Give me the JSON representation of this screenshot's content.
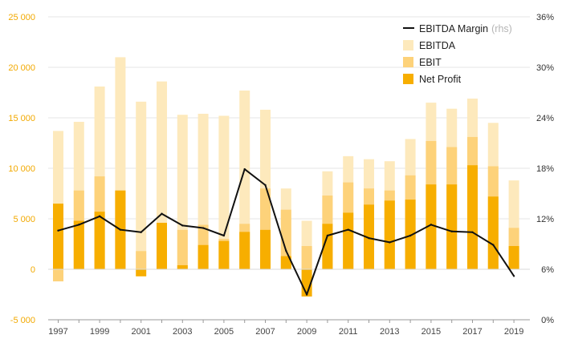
{
  "chart_data": {
    "type": "bar",
    "categories": [
      "1997",
      "1998",
      "1999",
      "2000",
      "2001",
      "2002",
      "2003",
      "2004",
      "2005",
      "2006",
      "2007",
      "2008",
      "2009",
      "2010",
      "2011",
      "2012",
      "2013",
      "2014",
      "2015",
      "2016",
      "2017",
      "2018",
      "2019"
    ],
    "x_tick_labels": [
      "1997",
      "1999",
      "2001",
      "2003",
      "2005",
      "2007",
      "2009",
      "2011",
      "2013",
      "2015",
      "2017",
      "2019"
    ],
    "series": [
      {
        "name": "EBITDA",
        "axis": "left",
        "values": [
          13700,
          14600,
          18100,
          21000,
          16600,
          18600,
          15300,
          15400,
          15200,
          17700,
          15800,
          8000,
          4800,
          9700,
          11200,
          10900,
          10700,
          12900,
          16500,
          15900,
          16900,
          14500,
          8800
        ]
      },
      {
        "name": "EBIT",
        "axis": "left",
        "values": [
          -1200,
          7800,
          9200,
          7800,
          1800,
          4600,
          3900,
          4400,
          3000,
          4500,
          8000,
          5900,
          2300,
          7300,
          8600,
          8000,
          7800,
          9300,
          12700,
          12100,
          13100,
          10200,
          4100
        ]
      },
      {
        "name": "Net Profit",
        "axis": "left",
        "values": [
          6500,
          4800,
          5700,
          7800,
          -700,
          4600,
          400,
          2400,
          2800,
          3700,
          3900,
          1300,
          -2700,
          4500,
          5600,
          6400,
          6800,
          6900,
          8400,
          8400,
          10300,
          7200,
          2300
        ]
      },
      {
        "name": "EBITDA Margin",
        "name_note": "(rhs)",
        "axis": "right",
        "type": "line",
        "values": [
          10.6,
          11.3,
          12.3,
          10.7,
          10.4,
          12.6,
          11.2,
          10.9,
          10.0,
          17.9,
          16.0,
          8.2,
          3.0,
          10.0,
          10.7,
          9.7,
          9.2,
          10.0,
          11.3,
          10.5,
          10.4,
          8.9,
          5.2
        ]
      }
    ],
    "left_axis": {
      "ylim": [
        -5000,
        25000
      ],
      "ticks": [
        -5000,
        0,
        5000,
        10000,
        15000,
        20000,
        25000
      ],
      "tick_labels": [
        "-5 000",
        "0",
        "5 000",
        "10 000",
        "15 000",
        "20 000",
        "25 000"
      ]
    },
    "right_axis": {
      "ylim": [
        0,
        36
      ],
      "ticks": [
        0,
        6,
        12,
        18,
        24,
        30,
        36
      ],
      "tick_labels": [
        "0%",
        "6%",
        "12%",
        "18%",
        "24%",
        "30%",
        "36%"
      ]
    },
    "colors": {
      "EBITDA": "#fde9bc",
      "EBIT": "#fdd27a",
      "Net Profit": "#f7ae00",
      "EBITDA Margin": "#111111",
      "grid": "#e6e6e6",
      "left_tick": "#f2a900"
    },
    "legend_placement": "top-right",
    "grid": true
  }
}
